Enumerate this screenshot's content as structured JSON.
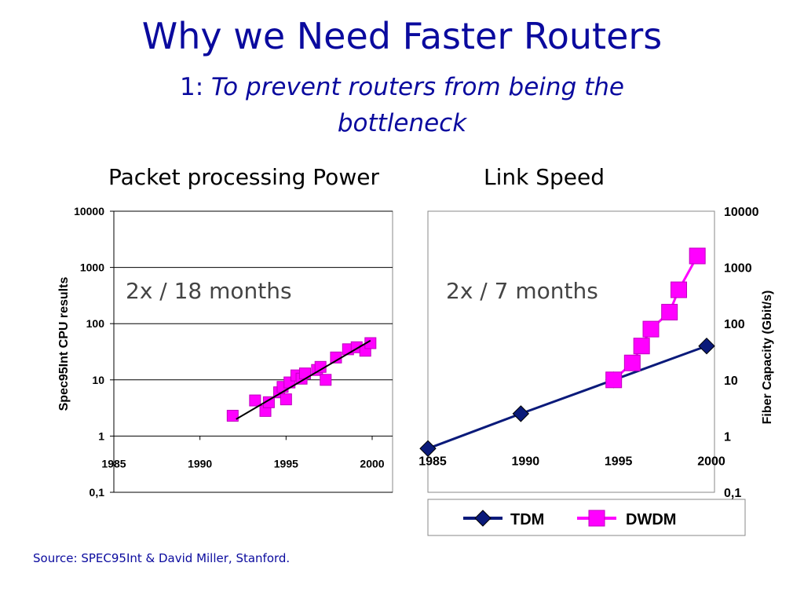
{
  "slide": {
    "title": "Why we Need Faster Routers",
    "subtitle_number": "1:",
    "subtitle_text": "To prevent routers from being the bottleneck",
    "left_heading": "Packet processing Power",
    "right_heading": "Link Speed",
    "source": "Source: SPEC95Int & David Miller, Stanford."
  },
  "colors": {
    "title": "#0a0a9e",
    "tdm": "#0a1a7a",
    "dwdm": "#ff00ff",
    "trend": "#000000",
    "annotation": "#444444"
  },
  "chart_data": [
    {
      "type": "scatter",
      "ylabel": "Spec95Int CPU results",
      "annotation": "2x / 18 months",
      "xlim": [
        1985,
        2000
      ],
      "x_ticks": [
        "1985",
        "1990",
        "1995",
        "2000"
      ],
      "y_scale": "log",
      "ylim": [
        0.1,
        10000
      ],
      "y_ticks": [
        "0,1",
        "1",
        "10",
        "100",
        "1000",
        "10000"
      ],
      "grid": true,
      "points": [
        {
          "x": 1991.9,
          "y": 2.3
        },
        {
          "x": 1993.2,
          "y": 4.3
        },
        {
          "x": 1993.8,
          "y": 2.8
        },
        {
          "x": 1994.0,
          "y": 4.0
        },
        {
          "x": 1994.6,
          "y": 6.0
        },
        {
          "x": 1994.8,
          "y": 7.5
        },
        {
          "x": 1995.0,
          "y": 4.5
        },
        {
          "x": 1995.2,
          "y": 9.0
        },
        {
          "x": 1995.6,
          "y": 12.0
        },
        {
          "x": 1995.9,
          "y": 10.5
        },
        {
          "x": 1996.1,
          "y": 13.0
        },
        {
          "x": 1996.8,
          "y": 15.0
        },
        {
          "x": 1997.0,
          "y": 17.0
        },
        {
          "x": 1997.3,
          "y": 10.0
        },
        {
          "x": 1997.9,
          "y": 25.0
        },
        {
          "x": 1998.6,
          "y": 35.0
        },
        {
          "x": 1999.1,
          "y": 38.0
        },
        {
          "x": 1999.6,
          "y": 33.0
        },
        {
          "x": 1999.9,
          "y": 45.0
        }
      ],
      "trend_line": [
        {
          "x": 1992.1,
          "y": 2.0
        },
        {
          "x": 1999.9,
          "y": 50.0
        }
      ]
    },
    {
      "type": "line",
      "ylabel": "Fiber Capacity (Gbit/s)",
      "annotation": "2x / 7 months",
      "xlim": [
        1985,
        2000
      ],
      "x_ticks": [
        "1985",
        "1990",
        "1995",
        "2000"
      ],
      "y_scale": "log",
      "ylim": [
        0.1,
        10000
      ],
      "y_ticks": [
        "0,1",
        "1",
        "10",
        "100",
        "1000",
        "10000"
      ],
      "grid": false,
      "legend_position": "bottom",
      "series": [
        {
          "name": "TDM",
          "marker": "diamond",
          "points": [
            {
              "x": 1985,
              "y": 0.6
            },
            {
              "x": 1990,
              "y": 2.5
            },
            {
              "x": 1995,
              "y": 10
            },
            {
              "x": 2000,
              "y": 40
            }
          ]
        },
        {
          "name": "DWDM",
          "marker": "square",
          "points": [
            {
              "x": 1995.0,
              "y": 10
            },
            {
              "x": 1996.0,
              "y": 20
            },
            {
              "x": 1996.5,
              "y": 40
            },
            {
              "x": 1997.0,
              "y": 80
            },
            {
              "x": 1998.0,
              "y": 160
            },
            {
              "x": 1998.5,
              "y": 400
            },
            {
              "x": 1999.5,
              "y": 1600
            }
          ]
        }
      ]
    }
  ]
}
